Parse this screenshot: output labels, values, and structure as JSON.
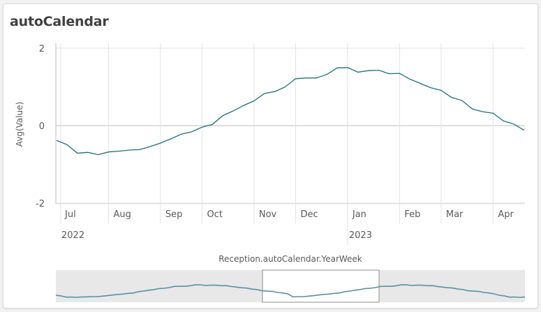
{
  "title": "autoCalendar",
  "chart_data": {
    "type": "line",
    "ylabel": "Avg(Value)",
    "xlabel": "Reception.autoCalendar.YearWeek",
    "ylim": [
      -2,
      2
    ],
    "yticks": [
      "2",
      "0",
      "-2"
    ],
    "line_color": "#1f6d7f",
    "grid": true,
    "months": [
      {
        "label": "Jul",
        "index": 0
      },
      {
        "label": "Aug",
        "index": 5
      },
      {
        "label": "Sep",
        "index": 10
      },
      {
        "label": "Oct",
        "index": 14
      },
      {
        "label": "Nov",
        "index": 19
      },
      {
        "label": "Dec",
        "index": 23
      },
      {
        "label": "Jan",
        "index": 28
      },
      {
        "label": "Feb",
        "index": 33
      },
      {
        "label": "Mar",
        "index": 37
      },
      {
        "label": "Apr",
        "index": 42
      }
    ],
    "years": [
      {
        "label": "2022",
        "index": 0
      },
      {
        "label": "2023",
        "index": 28
      }
    ],
    "values": [
      -0.38,
      -0.49,
      -0.71,
      -0.69,
      -0.75,
      -0.68,
      -0.66,
      -0.63,
      -0.62,
      -0.54,
      -0.45,
      -0.34,
      -0.22,
      -0.16,
      -0.04,
      0.03,
      0.26,
      0.38,
      0.52,
      0.64,
      0.83,
      0.88,
      1.0,
      1.21,
      1.23,
      1.23,
      1.32,
      1.49,
      1.5,
      1.38,
      1.42,
      1.43,
      1.34,
      1.35,
      1.2,
      1.09,
      0.98,
      0.91,
      0.73,
      0.65,
      0.43,
      0.36,
      0.32,
      0.12,
      0.04,
      -0.12
    ]
  }
}
